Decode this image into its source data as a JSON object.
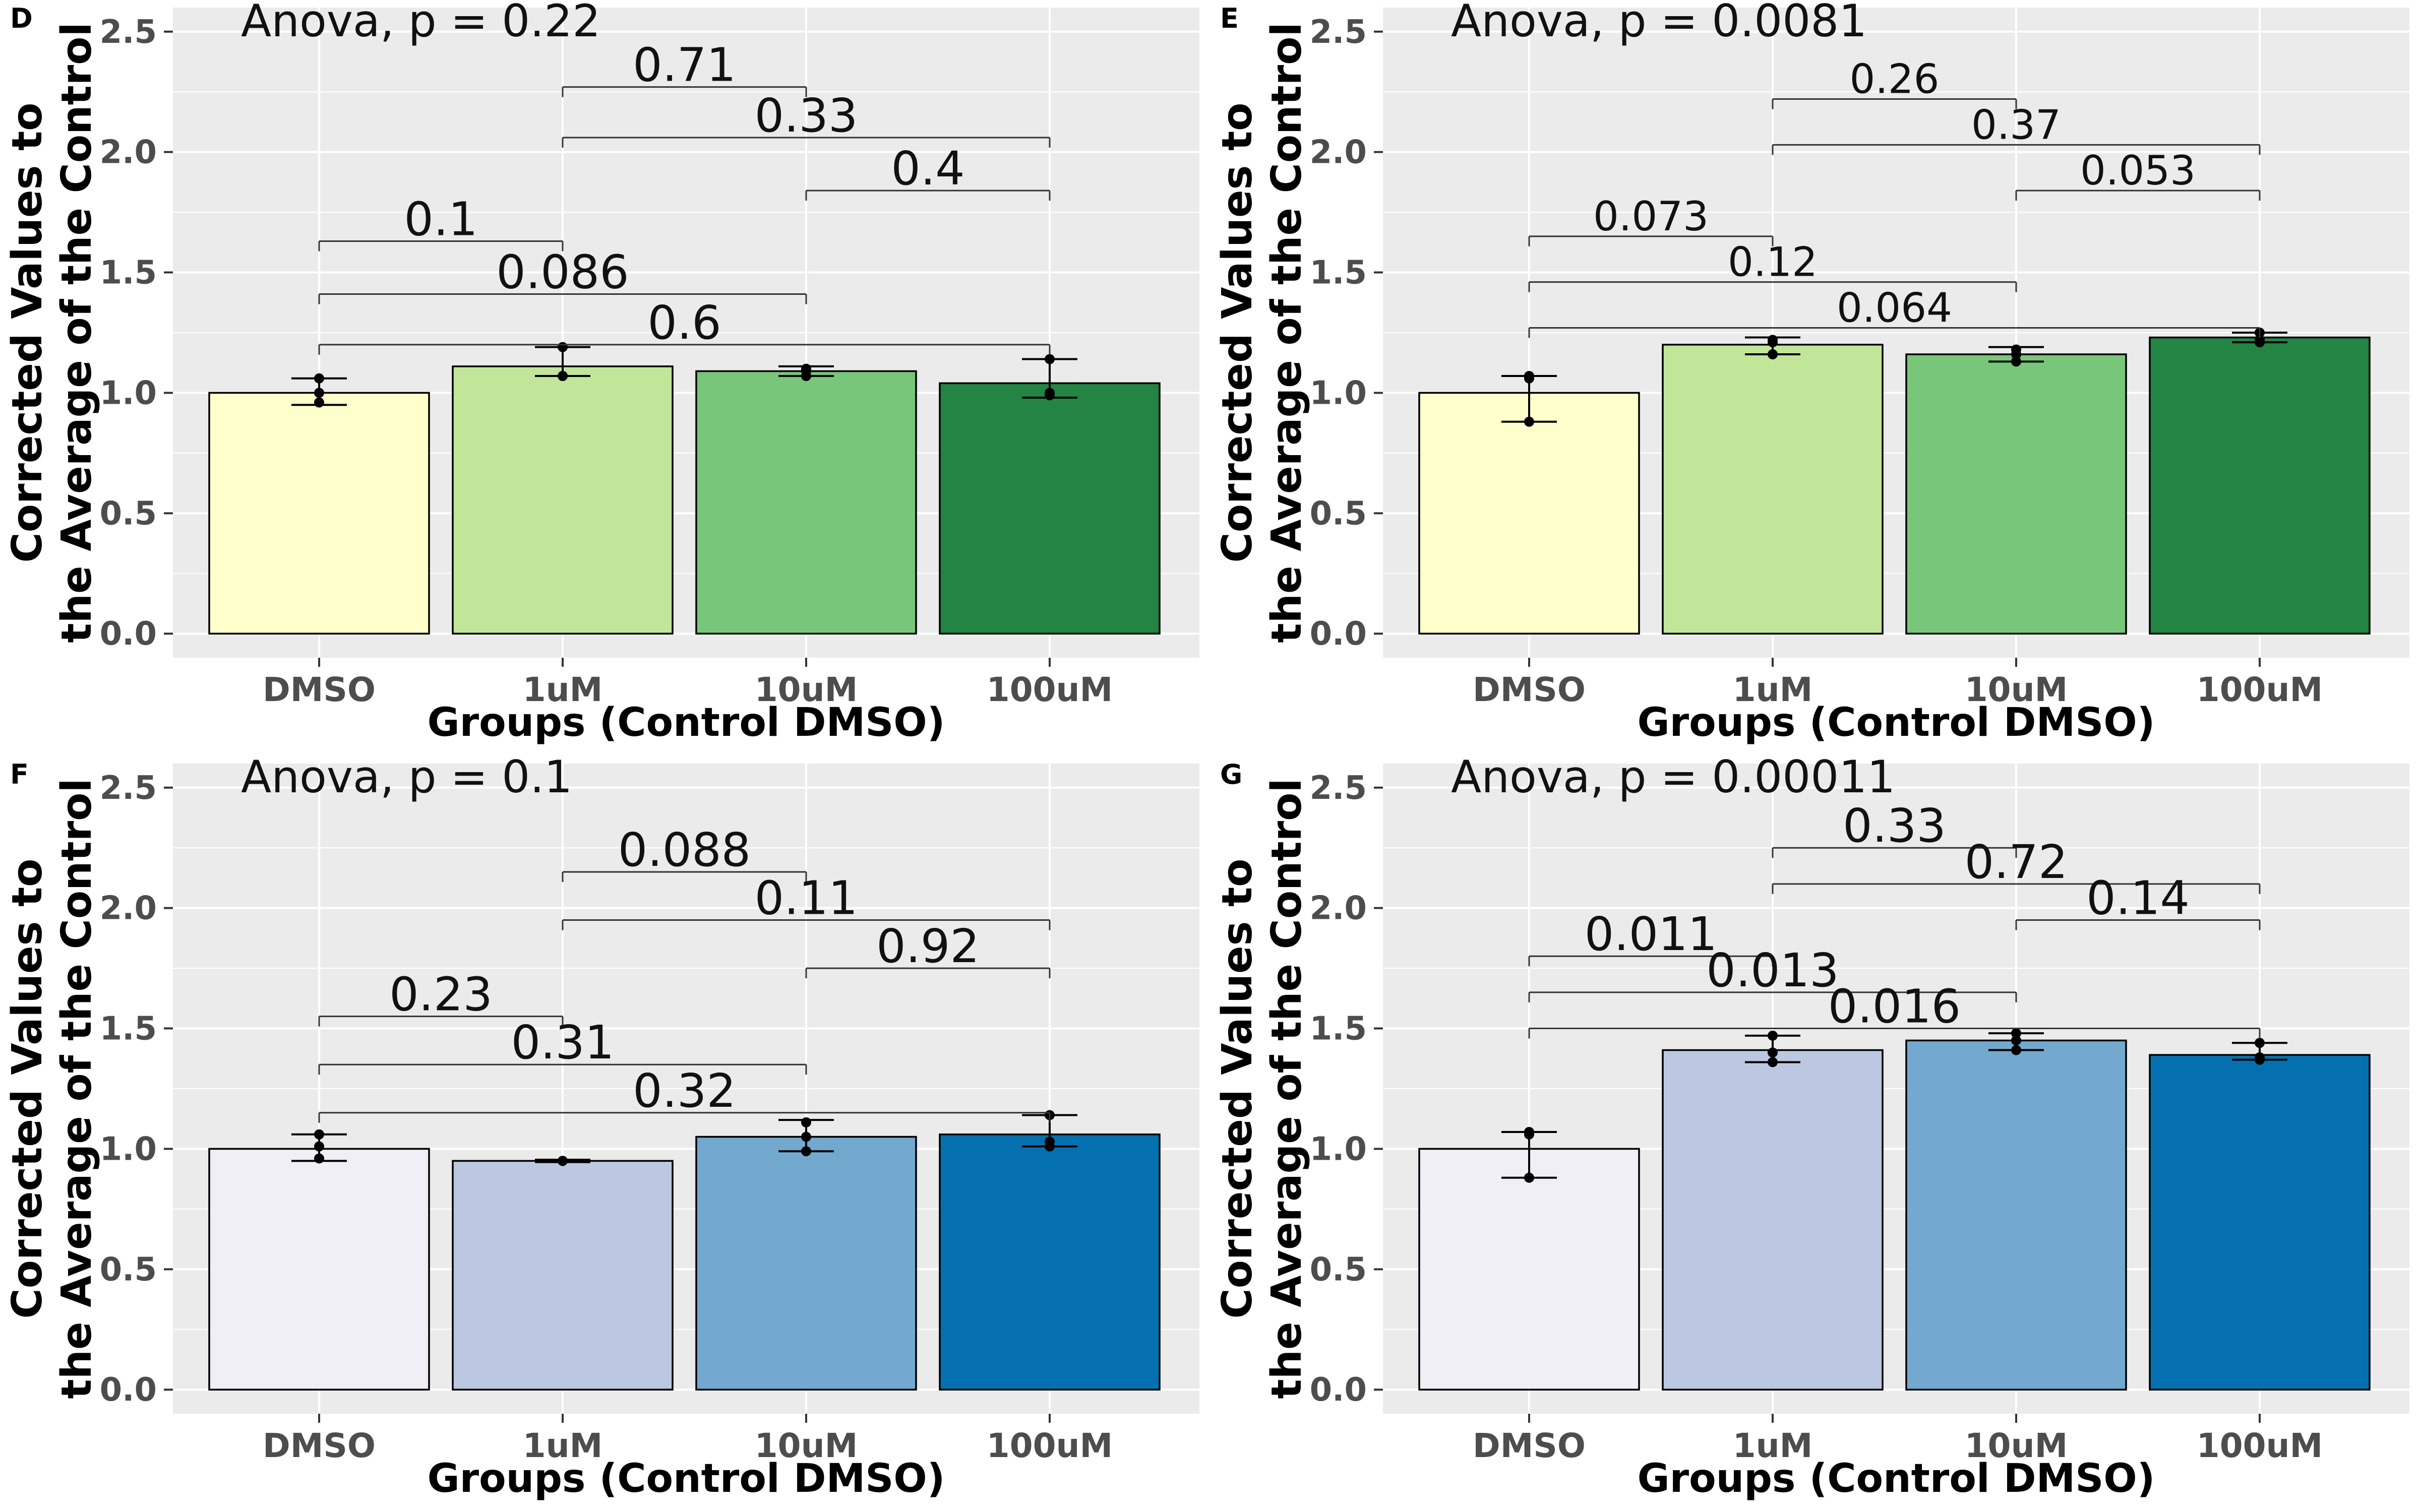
{
  "chart_data": [
    {
      "type": "bar",
      "panel_letter": "D",
      "anova_text": "Anova, p = 0.22",
      "xlabel": "Groups (Control DMSO)",
      "ylabel_line1": "Corrected Values to",
      "ylabel_line2": "the Average of the Control",
      "categories": [
        "DMSO",
        "1uM",
        "10uM",
        "100uM"
      ],
      "values": [
        1.0,
        1.11,
        1.09,
        1.04
      ],
      "error_low": [
        0.95,
        1.07,
        1.07,
        0.98
      ],
      "error_high": [
        1.06,
        1.19,
        1.11,
        1.14
      ],
      "points": [
        [
          0.96,
          1.0,
          1.06
        ],
        [
          1.07,
          1.07,
          1.19
        ],
        [
          1.07,
          1.09,
          1.1
        ],
        [
          0.99,
          1.0,
          1.14
        ]
      ],
      "colors": [
        "#ffffcc",
        "#c2e699",
        "#78c679",
        "#238443"
      ],
      "ylim": [
        -0.1,
        2.6
      ],
      "yticks": [
        "0.0",
        "0.5",
        "1.0",
        "1.5",
        "2.0",
        "2.5"
      ],
      "grid": true,
      "comparisons": [
        {
          "from": 1,
          "to": 2,
          "y": 2.27,
          "label": "0.71"
        },
        {
          "from": 1,
          "to": 3,
          "y": 2.06,
          "label": "0.33"
        },
        {
          "from": 2,
          "to": 3,
          "y": 1.84,
          "label": "0.4"
        },
        {
          "from": 0,
          "to": 1,
          "y": 1.63,
          "label": "0.1"
        },
        {
          "from": 0,
          "to": 2,
          "y": 1.41,
          "label": "0.086"
        },
        {
          "from": 0,
          "to": 3,
          "y": 1.2,
          "label": "0.6"
        }
      ]
    },
    {
      "type": "bar",
      "panel_letter": "E",
      "anova_text": "Anova, p = 0.0081",
      "xlabel": "Groups (Control DMSO)",
      "ylabel_line1": "Corrected Values to",
      "ylabel_line2": "the Average of the Control",
      "categories": [
        "DMSO",
        "1uM",
        "10uM",
        "100uM"
      ],
      "values": [
        1.0,
        1.2,
        1.16,
        1.23
      ],
      "error_low": [
        0.88,
        1.16,
        1.13,
        1.21
      ],
      "error_high": [
        1.07,
        1.23,
        1.19,
        1.25
      ],
      "points": [
        [
          0.88,
          1.06,
          1.07
        ],
        [
          1.16,
          1.21,
          1.22
        ],
        [
          1.13,
          1.16,
          1.18
        ],
        [
          1.21,
          1.22,
          1.25
        ]
      ],
      "colors": [
        "#ffffcc",
        "#c2e699",
        "#78c679",
        "#238443"
      ],
      "ylim": [
        -0.1,
        2.6
      ],
      "yticks": [
        "0.0",
        "0.5",
        "1.0",
        "1.5",
        "2.0",
        "2.5"
      ],
      "grid": true,
      "comparisons": [
        {
          "from": 1,
          "to": 2,
          "y": 2.22,
          "label": "0.26"
        },
        {
          "from": 1,
          "to": 3,
          "y": 2.03,
          "label": "0.37"
        },
        {
          "from": 2,
          "to": 3,
          "y": 1.84,
          "label": "0.053"
        },
        {
          "from": 0,
          "to": 1,
          "y": 1.65,
          "label": "0.073"
        },
        {
          "from": 0,
          "to": 2,
          "y": 1.46,
          "label": "0.12"
        },
        {
          "from": 0,
          "to": 3,
          "y": 1.27,
          "label": "0.064"
        }
      ]
    },
    {
      "type": "bar",
      "panel_letter": "F",
      "anova_text": "Anova, p = 0.1",
      "xlabel": "Groups (Control DMSO)",
      "ylabel_line1": "Corrected Values to",
      "ylabel_line2": "the Average of the Control",
      "categories": [
        "DMSO",
        "1uM",
        "10uM",
        "100uM"
      ],
      "values": [
        1.0,
        0.95,
        1.05,
        1.06
      ],
      "error_low": [
        0.95,
        0.945,
        0.99,
        1.01
      ],
      "error_high": [
        1.06,
        0.955,
        1.12,
        1.14
      ],
      "points": [
        [
          0.96,
          1.01,
          1.06
        ],
        [
          0.95,
          0.95,
          0.95
        ],
        [
          0.99,
          1.05,
          1.11
        ],
        [
          1.01,
          1.03,
          1.14
        ]
      ],
      "colors": [
        "#f0eff6",
        "#bcc8e1",
        "#74a9cf",
        "#0570b0"
      ],
      "ylim": [
        -0.1,
        2.6
      ],
      "yticks": [
        "0.0",
        "0.5",
        "1.0",
        "1.5",
        "2.0",
        "2.5"
      ],
      "grid": true,
      "comparisons": [
        {
          "from": 1,
          "to": 2,
          "y": 2.15,
          "label": "0.088"
        },
        {
          "from": 1,
          "to": 3,
          "y": 1.95,
          "label": "0.11"
        },
        {
          "from": 2,
          "to": 3,
          "y": 1.75,
          "label": "0.92"
        },
        {
          "from": 0,
          "to": 1,
          "y": 1.55,
          "label": "0.23"
        },
        {
          "from": 0,
          "to": 2,
          "y": 1.35,
          "label": "0.31"
        },
        {
          "from": 0,
          "to": 3,
          "y": 1.15,
          "label": "0.32"
        }
      ]
    },
    {
      "type": "bar",
      "panel_letter": "G",
      "anova_text": "Anova, p = 0.00011",
      "xlabel": "Groups (Control DMSO)",
      "ylabel_line1": "Corrected Values to",
      "ylabel_line2": "the Average of the Control",
      "categories": [
        "DMSO",
        "1uM",
        "10uM",
        "100uM"
      ],
      "values": [
        1.0,
        1.41,
        1.45,
        1.39
      ],
      "error_low": [
        0.88,
        1.36,
        1.41,
        1.37
      ],
      "error_high": [
        1.07,
        1.47,
        1.48,
        1.44
      ],
      "points": [
        [
          0.88,
          1.06,
          1.07
        ],
        [
          1.36,
          1.4,
          1.47
        ],
        [
          1.41,
          1.45,
          1.48
        ],
        [
          1.37,
          1.38,
          1.44
        ]
      ],
      "colors": [
        "#f0eff6",
        "#bcc8e1",
        "#74a9cf",
        "#0570b0"
      ],
      "ylim": [
        -0.1,
        2.6
      ],
      "yticks": [
        "0.0",
        "0.5",
        "1.0",
        "1.5",
        "2.0",
        "2.5"
      ],
      "grid": true,
      "comparisons": [
        {
          "from": 1,
          "to": 2,
          "y": 2.25,
          "label": "0.33"
        },
        {
          "from": 1,
          "to": 3,
          "y": 2.1,
          "label": "0.72"
        },
        {
          "from": 2,
          "to": 3,
          "y": 1.95,
          "label": "0.14"
        },
        {
          "from": 0,
          "to": 1,
          "y": 1.8,
          "label": "0.011"
        },
        {
          "from": 0,
          "to": 2,
          "y": 1.65,
          "label": "0.013"
        },
        {
          "from": 0,
          "to": 3,
          "y": 1.5,
          "label": "0.016"
        }
      ]
    }
  ]
}
